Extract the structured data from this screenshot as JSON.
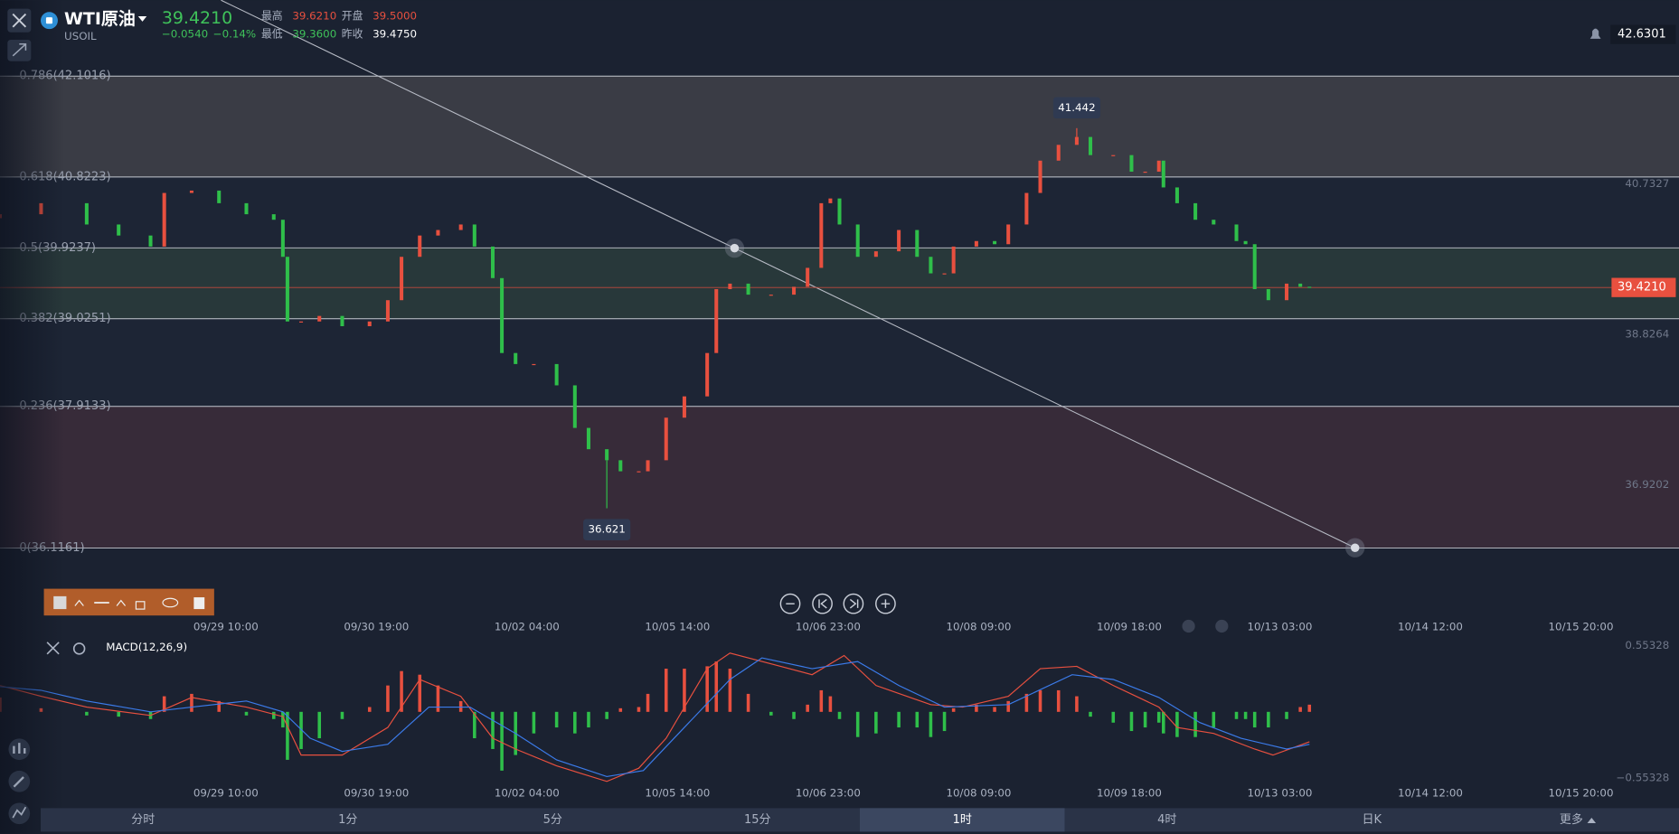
{
  "header": {
    "symbol": "WTI原油",
    "code": "USOIL",
    "price": "39.4210",
    "change": "−0.0540",
    "change_pct": "−0.14%",
    "stats": [
      {
        "label": "最高",
        "value": "39.6210"
      },
      {
        "label": "开盘",
        "value": "39.5000"
      },
      {
        "label": "最低",
        "value": "39.3600"
      },
      {
        "label": "昨收",
        "value": "39.4750"
      }
    ],
    "top_right": "42.6301"
  },
  "chart_data": [
    {
      "type": "candlestick",
      "x": [
        0,
        9,
        19,
        26,
        33,
        36,
        42,
        48,
        54,
        60,
        62,
        63,
        66,
        70,
        75,
        81,
        85,
        88,
        92,
        96,
        101,
        104,
        108,
        110,
        113,
        117,
        122,
        126,
        129,
        133,
        136,
        140,
        142,
        146,
        150,
        155,
        157,
        160,
        164,
        169,
        174,
        177,
        180,
        182,
        184,
        188,
        192,
        197,
        201,
        204,
        207,
        209,
        214,
        218,
        221,
        225,
        228,
        232,
        236,
        239,
        244,
        248,
        251,
        254,
        255,
        258,
        262,
        266,
        271,
        273,
        275,
        278,
        282,
        285,
        287
      ],
      "open": [
        40.3,
        40.35,
        40.49,
        40.22,
        40.08,
        39.94,
        40.62,
        40.65,
        40.49,
        40.35,
        40.28,
        39.81,
        38.99,
        38.99,
        39.06,
        38.93,
        38.99,
        39.26,
        39.81,
        40.08,
        40.15,
        40.22,
        39.94,
        39.54,
        38.59,
        38.45,
        38.45,
        38.18,
        37.64,
        37.37,
        37.23,
        37.09,
        37.09,
        37.23,
        37.77,
        38.04,
        38.59,
        39.4,
        39.47,
        39.33,
        39.33,
        39.43,
        39.67,
        40.49,
        40.55,
        40.22,
        39.81,
        39.88,
        40.15,
        39.81,
        39.6,
        39.6,
        39.94,
        40.01,
        39.97,
        40.22,
        40.62,
        41.03,
        41.23,
        41.33,
        41.1,
        41.1,
        40.89,
        40.89,
        41.03,
        40.69,
        40.49,
        40.28,
        40.22,
        40.01,
        39.97,
        39.4,
        39.26,
        39.47,
        39.43
      ],
      "close": [
        40.35,
        40.49,
        40.22,
        40.08,
        39.94,
        40.62,
        40.65,
        40.49,
        40.35,
        40.28,
        39.81,
        38.99,
        38.99,
        39.06,
        38.93,
        38.99,
        39.26,
        39.81,
        40.08,
        40.15,
        40.22,
        39.94,
        39.54,
        38.59,
        38.45,
        38.45,
        38.18,
        37.64,
        37.37,
        37.23,
        37.09,
        37.09,
        37.23,
        37.77,
        38.04,
        38.59,
        39.4,
        39.47,
        39.33,
        39.33,
        39.43,
        39.67,
        40.49,
        40.55,
        40.22,
        39.81,
        39.88,
        40.15,
        39.81,
        39.6,
        39.6,
        39.94,
        40.01,
        39.97,
        40.22,
        40.62,
        41.03,
        41.23,
        41.33,
        41.1,
        41.1,
        40.89,
        40.89,
        41.03,
        40.69,
        40.49,
        40.28,
        40.22,
        40.01,
        39.97,
        39.4,
        39.26,
        39.47,
        39.43,
        39.421
      ],
      "up_color": "#e8503f",
      "down_color": "#2fbf4a",
      "xlim": [
        0,
        368
      ],
      "ylim": [
        35.668,
        42.454
      ],
      "xticks": [
        {
          "value": 49.5,
          "label": "09/29 10:00"
        },
        {
          "value": 82.5,
          "label": "09/30 19:00"
        },
        {
          "value": 115.5,
          "label": "10/02 04:00"
        },
        {
          "value": 148.5,
          "label": "10/05 14:00"
        },
        {
          "value": 181.5,
          "label": "10/06 23:00"
        },
        {
          "value": 214.5,
          "label": "10/08 09:00"
        },
        {
          "value": 247.5,
          "label": "10/09 18:00"
        },
        {
          "value": 280.5,
          "label": "10/13 03:00"
        },
        {
          "value": 313.5,
          "label": "10/14 12:00"
        },
        {
          "value": 346.5,
          "label": "10/15 20:00"
        }
      ],
      "yticks": [
        40.7327,
        38.8264,
        36.9202
      ],
      "last_price": {
        "value": 39.421,
        "label": "39.4210"
      },
      "fib_levels": [
        {
          "value": 42.1016,
          "label": "0.786(42.1016)",
          "color": "#3a3c45"
        },
        {
          "value": 40.8223,
          "label": "0.618(40.8223)",
          "color": "#1d2535"
        },
        {
          "value": 39.9237,
          "label": "0.5(39.9237)",
          "color": "#28383a"
        },
        {
          "value": 39.0251,
          "label": "0.382(39.0251)",
          "color": "#1d2535"
        },
        {
          "value": 37.9133,
          "label": "0.236(37.9133)",
          "color": "#372b39"
        },
        {
          "value": 36.1161,
          "label": "0(36.1161)"
        }
      ],
      "annotations": [
        {
          "x": 236,
          "value": 41.442,
          "label": "41.442"
        },
        {
          "x": 133,
          "value": 36.621,
          "label": "36.621"
        }
      ],
      "trendline": {
        "x": [
          161,
          297
        ],
        "values": [
          39.92,
          36.12
        ],
        "color": "#b8bcc6"
      }
    },
    {
      "type": "macd",
      "title": "MACD(12,26,9)",
      "x": [
        0,
        9,
        19,
        26,
        33,
        36,
        42,
        48,
        54,
        60,
        62,
        63,
        66,
        70,
        75,
        81,
        85,
        88,
        92,
        96,
        101,
        104,
        108,
        110,
        113,
        117,
        122,
        126,
        129,
        133,
        136,
        140,
        142,
        146,
        150,
        155,
        157,
        160,
        164,
        169,
        174,
        177,
        180,
        182,
        184,
        188,
        192,
        197,
        201,
        204,
        207,
        209,
        214,
        218,
        221,
        225,
        228,
        232,
        236,
        239,
        244,
        248,
        251,
        254,
        255,
        258,
        262,
        266,
        271,
        273,
        275,
        278,
        282,
        285,
        287
      ],
      "histogram": [
        0.12,
        0.03,
        -0.03,
        -0.04,
        -0.06,
        0.13,
        0.15,
        0.09,
        -0.03,
        -0.06,
        -0.13,
        -0.4,
        -0.31,
        -0.22,
        -0.06,
        0.04,
        0.22,
        0.34,
        0.31,
        0.22,
        0.09,
        -0.22,
        -0.31,
        -0.49,
        -0.36,
        -0.18,
        -0.13,
        -0.18,
        -0.13,
        -0.06,
        0.03,
        0.04,
        0.15,
        0.36,
        0.36,
        0.38,
        0.42,
        0.36,
        0.15,
        -0.03,
        -0.06,
        0.06,
        0.18,
        0.13,
        -0.06,
        -0.21,
        -0.18,
        -0.13,
        -0.13,
        -0.21,
        -0.16,
        0.03,
        0.06,
        0.04,
        0.09,
        0.15,
        0.18,
        0.18,
        0.13,
        -0.04,
        -0.09,
        -0.16,
        -0.13,
        -0.09,
        -0.18,
        -0.21,
        -0.21,
        -0.13,
        -0.06,
        -0.06,
        -0.13,
        -0.13,
        -0.06,
        0.04,
        0.06
      ],
      "up_color": "#e8503f",
      "down_color": "#2fbf4a",
      "series": [
        {
          "color": "#e8503f",
          "x": [
            0,
            9,
            19,
            33,
            42,
            54,
            62,
            66,
            75,
            85,
            92,
            101,
            108,
            113,
            122,
            133,
            140,
            146,
            155,
            160,
            169,
            178,
            185,
            192,
            204,
            211,
            221,
            228,
            236,
            244,
            254,
            258,
            266,
            275,
            279,
            287
          ],
          "values": [
            0.22,
            0.13,
            0.04,
            -0.03,
            0.12,
            0.04,
            -0.04,
            -0.36,
            -0.36,
            -0.13,
            0.27,
            0.13,
            -0.22,
            -0.31,
            -0.45,
            -0.58,
            -0.47,
            -0.22,
            0.36,
            0.49,
            0.4,
            0.31,
            0.47,
            0.22,
            0.06,
            0.04,
            0.13,
            0.36,
            0.38,
            0.22,
            0.04,
            -0.13,
            -0.18,
            -0.31,
            -0.36,
            -0.25
          ]
        },
        {
          "color": "#3b7bea",
          "x": [
            0,
            9,
            19,
            33,
            42,
            54,
            62,
            68,
            75,
            85,
            94,
            103,
            113,
            122,
            133,
            141,
            150,
            160,
            167,
            178,
            188,
            197,
            207,
            221,
            235,
            244,
            254,
            263,
            272,
            282,
            287
          ],
          "values": [
            0.21,
            0.18,
            0.09,
            0,
            0.04,
            0.09,
            0,
            -0.22,
            -0.33,
            -0.27,
            0.04,
            0.04,
            -0.18,
            -0.4,
            -0.54,
            -0.49,
            -0.13,
            0.27,
            0.45,
            0.36,
            0.42,
            0.22,
            0.04,
            0.06,
            0.31,
            0.27,
            0.12,
            -0.09,
            -0.22,
            -0.31,
            -0.27
          ]
        }
      ],
      "xlim": [
        0,
        368
      ],
      "ylim": [
        -0.669,
        0.625
      ],
      "xticks": [
        {
          "value": 49.5,
          "label": "09/29 10:00"
        },
        {
          "value": 82.5,
          "label": "09/30 19:00"
        },
        {
          "value": 115.5,
          "label": "10/02 04:00"
        },
        {
          "value": 148.5,
          "label": "10/05 14:00"
        },
        {
          "value": 181.5,
          "label": "10/06 23:00"
        },
        {
          "value": 214.5,
          "label": "10/08 09:00"
        },
        {
          "value": 247.5,
          "label": "10/09 18:00"
        },
        {
          "value": 280.5,
          "label": "10/13 03:00"
        },
        {
          "value": 313.5,
          "label": "10/14 12:00"
        },
        {
          "value": 346.5,
          "label": "10/15 20:00"
        }
      ],
      "yticks": [
        0.55328,
        {
          "value": -0.55328,
          "label": "−0.55328"
        }
      ]
    }
  ],
  "tabs": [
    "分时",
    "1分",
    "5分",
    "15分",
    "1时",
    "4时",
    "日K",
    "更多"
  ],
  "active_tab": 4
}
